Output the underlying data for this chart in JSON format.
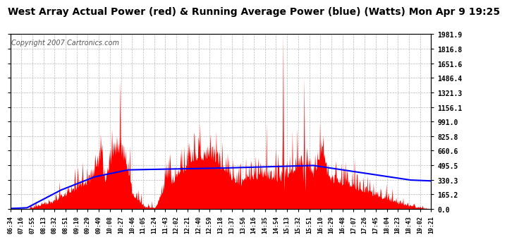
{
  "title": "West Array Actual Power (red) & Running Average Power (blue) (Watts) Mon Apr 9 19:25",
  "copyright": "Copyright 2007 Cartronics.com",
  "ylabel_right_ticks": [
    0.0,
    165.2,
    330.3,
    495.5,
    660.6,
    825.8,
    991.0,
    1156.1,
    1321.3,
    1486.4,
    1651.6,
    1816.8,
    1981.9
  ],
  "ymax": 1981.9,
  "ymin": 0.0,
  "xtick_labels": [
    "06:34",
    "07:16",
    "07:55",
    "08:13",
    "08:32",
    "08:51",
    "09:10",
    "09:29",
    "09:49",
    "10:08",
    "10:27",
    "10:46",
    "11:05",
    "11:24",
    "11:43",
    "12:02",
    "12:21",
    "12:40",
    "12:59",
    "13:18",
    "13:37",
    "13:56",
    "14:16",
    "14:35",
    "14:54",
    "15:13",
    "15:32",
    "15:51",
    "16:10",
    "16:29",
    "16:48",
    "17:07",
    "17:26",
    "17:45",
    "18:04",
    "18:23",
    "18:43",
    "19:02",
    "19:21"
  ],
  "bg_color": "#ffffff",
  "plot_bg_color": "#ffffff",
  "grid_color": "#b0b0b0",
  "red_color": "#ff0000",
  "blue_color": "#0000ff",
  "title_fontsize": 10,
  "copyright_fontsize": 7
}
